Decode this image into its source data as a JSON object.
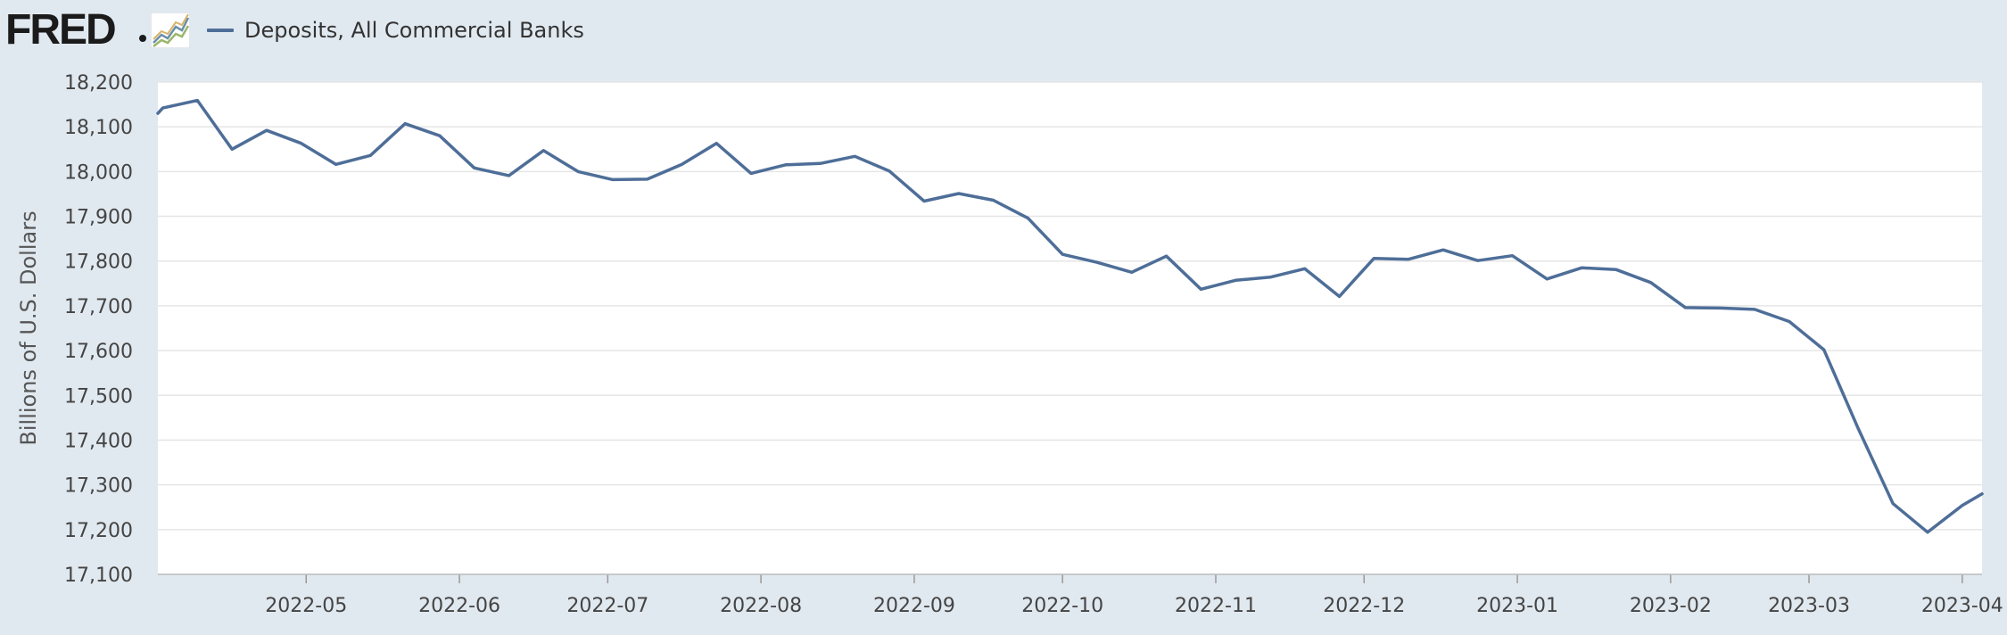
{
  "header": {
    "logo_text": "FRED",
    "logo_graph_icon": "fred-graph-icon",
    "legend_label": "Deposits, All Commercial Banks"
  },
  "colors": {
    "background": "#e1e9f0",
    "plot_background": "#ffffff",
    "series_line": "#4e6e98",
    "grid": "#e6e6e6"
  },
  "chart_data": {
    "type": "line",
    "title": "",
    "xlabel": "",
    "ylabel": "Billions of U.S. Dollars",
    "ylim": [
      17100,
      18200
    ],
    "xlim": [
      "2022-04-01",
      "2023-04-05"
    ],
    "grid": true,
    "legend_position": "top-left",
    "y_ticks": [
      17100,
      17200,
      17300,
      17400,
      17500,
      17600,
      17700,
      17800,
      17900,
      18000,
      18100,
      18200
    ],
    "y_tick_labels": [
      "17,100",
      "17,200",
      "17,300",
      "17,400",
      "17,500",
      "17,600",
      "17,700",
      "17,800",
      "17,900",
      "18,000",
      "18,100",
      "18,200"
    ],
    "x_ticks": [
      "2022-05-01",
      "2022-06-01",
      "2022-07-01",
      "2022-08-01",
      "2022-09-01",
      "2022-10-01",
      "2022-11-01",
      "2022-12-01",
      "2023-01-01",
      "2023-02-01",
      "2023-03-01",
      "2023-04-01"
    ],
    "x_tick_labels": [
      "2022-05",
      "2022-06",
      "2022-07",
      "2022-08",
      "2022-09",
      "2022-10",
      "2022-11",
      "2022-12",
      "2023-01",
      "2023-02",
      "2023-03",
      "2023-04"
    ],
    "series": [
      {
        "name": "Deposits, All Commercial Banks",
        "x": [
          "2022-04-01",
          "2022-04-02",
          "2022-04-09",
          "2022-04-16",
          "2022-04-23",
          "2022-04-30",
          "2022-05-07",
          "2022-05-14",
          "2022-05-21",
          "2022-05-28",
          "2022-06-04",
          "2022-06-11",
          "2022-06-18",
          "2022-06-25",
          "2022-07-02",
          "2022-07-09",
          "2022-07-16",
          "2022-07-23",
          "2022-07-30",
          "2022-08-06",
          "2022-08-13",
          "2022-08-20",
          "2022-08-27",
          "2022-09-03",
          "2022-09-10",
          "2022-09-17",
          "2022-09-24",
          "2022-10-01",
          "2022-10-08",
          "2022-10-15",
          "2022-10-22",
          "2022-10-29",
          "2022-11-05",
          "2022-11-12",
          "2022-11-19",
          "2022-11-26",
          "2022-12-03",
          "2022-12-10",
          "2022-12-17",
          "2022-12-24",
          "2022-12-31",
          "2023-01-07",
          "2023-01-14",
          "2023-01-21",
          "2023-01-28",
          "2023-02-04",
          "2023-02-11",
          "2023-02-18",
          "2023-02-25",
          "2023-03-04",
          "2023-03-11",
          "2023-03-18",
          "2023-03-25",
          "2023-04-01",
          "2023-04-05"
        ],
        "values": [
          18130,
          18142,
          18159,
          18050,
          18092,
          18063,
          18016,
          18036,
          18107,
          18080,
          18008,
          17991,
          18047,
          18000,
          17982,
          17983,
          18016,
          18063,
          17996,
          18015,
          18018,
          18034,
          18001,
          17934,
          17951,
          17936,
          17896,
          17815,
          17797,
          17775,
          17811,
          17737,
          17757,
          17764,
          17783,
          17721,
          17806,
          17804,
          17825,
          17801,
          17812,
          17760,
          17785,
          17781,
          17752,
          17696,
          17695,
          17692,
          17665,
          17602,
          17425,
          17258,
          17194,
          17254,
          17280
        ]
      }
    ]
  }
}
